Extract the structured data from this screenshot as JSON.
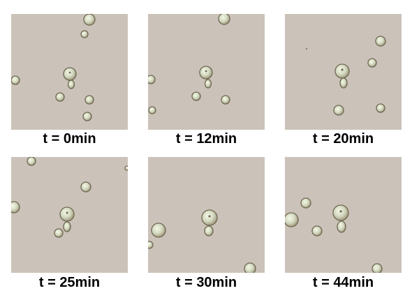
{
  "figure": {
    "panels": [
      {
        "label": "t = 0min"
      },
      {
        "label": "t = 12min"
      },
      {
        "label": "t = 20min"
      },
      {
        "label": "t = 25min"
      },
      {
        "label": "t = 30min"
      },
      {
        "label": "t = 44min"
      }
    ],
    "colors": {
      "background": "#cbc3b9",
      "cell_fill": "#d7dcc6",
      "cell_edge": "#7b725f"
    }
  }
}
